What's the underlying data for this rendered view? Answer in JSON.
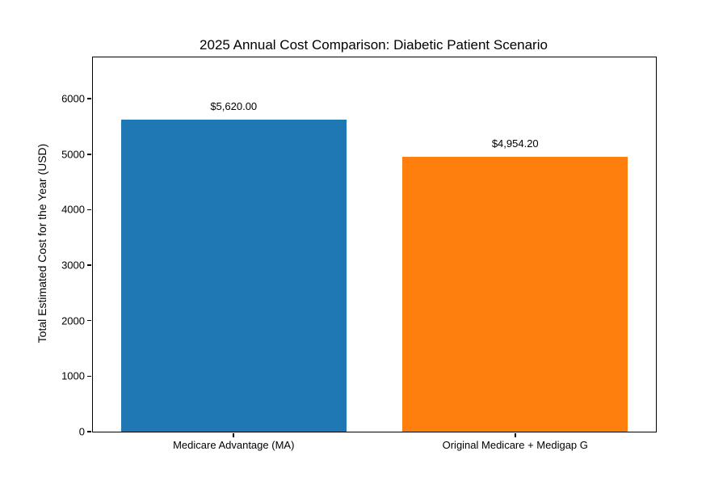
{
  "chart_data": {
    "type": "bar",
    "title": "2025 Annual Cost Comparison: Diabetic Patient Scenario",
    "xlabel": "",
    "ylabel": "Total Estimated Cost for the Year (USD)",
    "categories": [
      "Medicare Advantage (MA)",
      "Original Medicare + Medigap G"
    ],
    "values": [
      5620.0,
      4954.2
    ],
    "value_labels": [
      "$5,620.00",
      "$4,954.20"
    ],
    "bar_colors": [
      "#1f77b4",
      "#ff7f0e"
    ],
    "ylim": [
      0,
      6744
    ],
    "yticks": [
      0,
      1000,
      2000,
      3000,
      4000,
      5000,
      6000
    ],
    "bar_width_fraction": 0.8,
    "grid": false,
    "legend_position": "none",
    "background_color": "#ffffff",
    "axes_color": "#000000",
    "text_color": "#000000"
  }
}
